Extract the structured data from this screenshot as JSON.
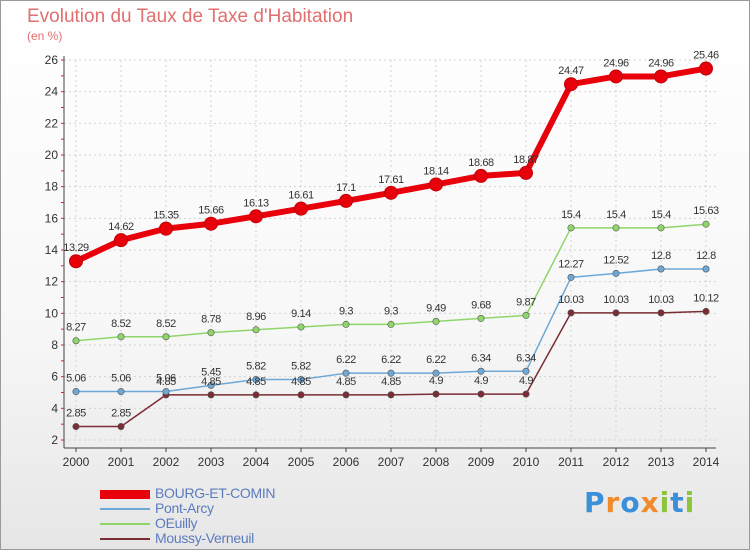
{
  "title": "Evolution du Taux de Taxe d'Habitation",
  "subtitle": "(en %)",
  "logo": {
    "text": "Proxiti",
    "colors": [
      "#3b8ed8",
      "#f08a2a",
      "#3b8ed8",
      "#f08a2a",
      "#8cc43c",
      "#3b8ed8",
      "#8cc43c"
    ]
  },
  "chart_data": {
    "type": "line",
    "x": [
      2000,
      2001,
      2002,
      2003,
      2004,
      2005,
      2006,
      2007,
      2008,
      2009,
      2010,
      2011,
      2012,
      2013,
      2014
    ],
    "ylim": [
      2,
      26
    ],
    "yticks": [
      2,
      4,
      6,
      8,
      10,
      12,
      14,
      16,
      18,
      20,
      22,
      24,
      26
    ],
    "grid": true,
    "legend": "bottom-left",
    "series": [
      {
        "name": "BOURG-ET-COMIN",
        "color": "#e8000b",
        "width": 6,
        "values": [
          13.29,
          14.62,
          15.35,
          15.66,
          16.13,
          16.61,
          17.1,
          17.61,
          18.14,
          18.68,
          18.87,
          24.47,
          24.96,
          24.96,
          25.46
        ],
        "labels": [
          "13.29",
          "14.62",
          "15.35",
          "15.66",
          "16.13",
          "16.61",
          "17.1",
          "17.61",
          "18.14",
          "18.68",
          "18.87",
          "24.47",
          "24.96",
          "24.96",
          "25.46"
        ]
      },
      {
        "name": "Pont-Arcy",
        "color": "#6ea8d6",
        "width": 1.5,
        "values": [
          5.06,
          5.06,
          5.06,
          5.45,
          5.82,
          5.82,
          6.22,
          6.22,
          6.22,
          6.34,
          6.34,
          12.27,
          12.52,
          12.8,
          12.8
        ],
        "labels": [
          "5.06",
          "5.06",
          "5.06",
          "5.45",
          "5.82",
          "5.82",
          "6.22",
          "6.22",
          "6.22",
          "6.34",
          "6.34",
          "12.27",
          "12.52",
          "12.8",
          "12.8"
        ]
      },
      {
        "name": "OEuilly",
        "color": "#8fd66a",
        "width": 1.5,
        "values": [
          8.27,
          8.52,
          8.52,
          8.78,
          8.96,
          9.14,
          9.3,
          9.3,
          9.49,
          9.68,
          9.87,
          15.4,
          15.4,
          15.4,
          15.63
        ],
        "labels": [
          "8.27",
          "8.52",
          "8.52",
          "8.78",
          "8.96",
          "9.14",
          "9.3",
          "9.3",
          "9.49",
          "9.68",
          "9.87",
          "15.4",
          "15.4",
          "15.4",
          "15.63"
        ]
      },
      {
        "name": "Moussy-Verneuil",
        "color": "#7a2d34",
        "width": 1.5,
        "values": [
          2.85,
          2.85,
          4.85,
          4.85,
          4.85,
          4.85,
          4.85,
          4.85,
          4.9,
          4.9,
          4.9,
          10.03,
          10.03,
          10.03,
          10.12
        ],
        "labels": [
          "2.85",
          "2.85",
          "4.85",
          "4.85",
          "4.85",
          "4.85",
          "4.85",
          "4.85",
          "4.9",
          "4.9",
          "4.9",
          "10.03",
          "10.03",
          "10.03",
          "10.12"
        ]
      }
    ]
  }
}
